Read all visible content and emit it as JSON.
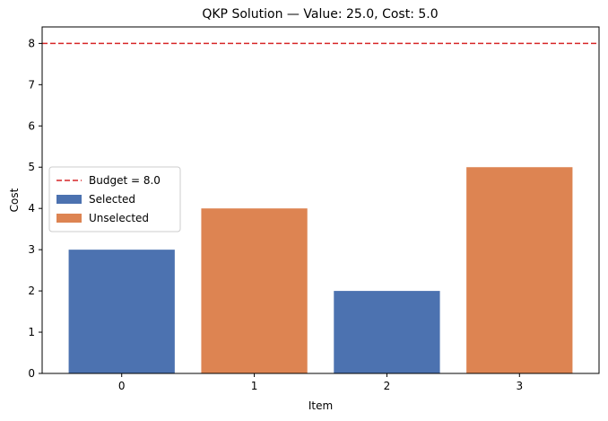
{
  "chart_data": {
    "type": "bar",
    "title": "QKP Solution — Value: 25.0, Cost: 5.0",
    "xlabel": "Item",
    "ylabel": "Cost",
    "categories": [
      "0",
      "1",
      "2",
      "3"
    ],
    "values": [
      3,
      4,
      2,
      5
    ],
    "bar_status": [
      "Selected",
      "Unselected",
      "Selected",
      "Unselected"
    ],
    "ylim": [
      0,
      8.4
    ],
    "yticks": [
      0,
      1,
      2,
      3,
      4,
      5,
      6,
      7,
      8
    ],
    "grid": false,
    "budget": 8.0,
    "legend": {
      "placement": "center-left",
      "entries": [
        "Budget = 8.0",
        "Selected",
        "Unselected"
      ]
    },
    "colors": {
      "selected": "#4c72b0",
      "unselected": "#dd8452",
      "budget": "#d62728"
    }
  }
}
